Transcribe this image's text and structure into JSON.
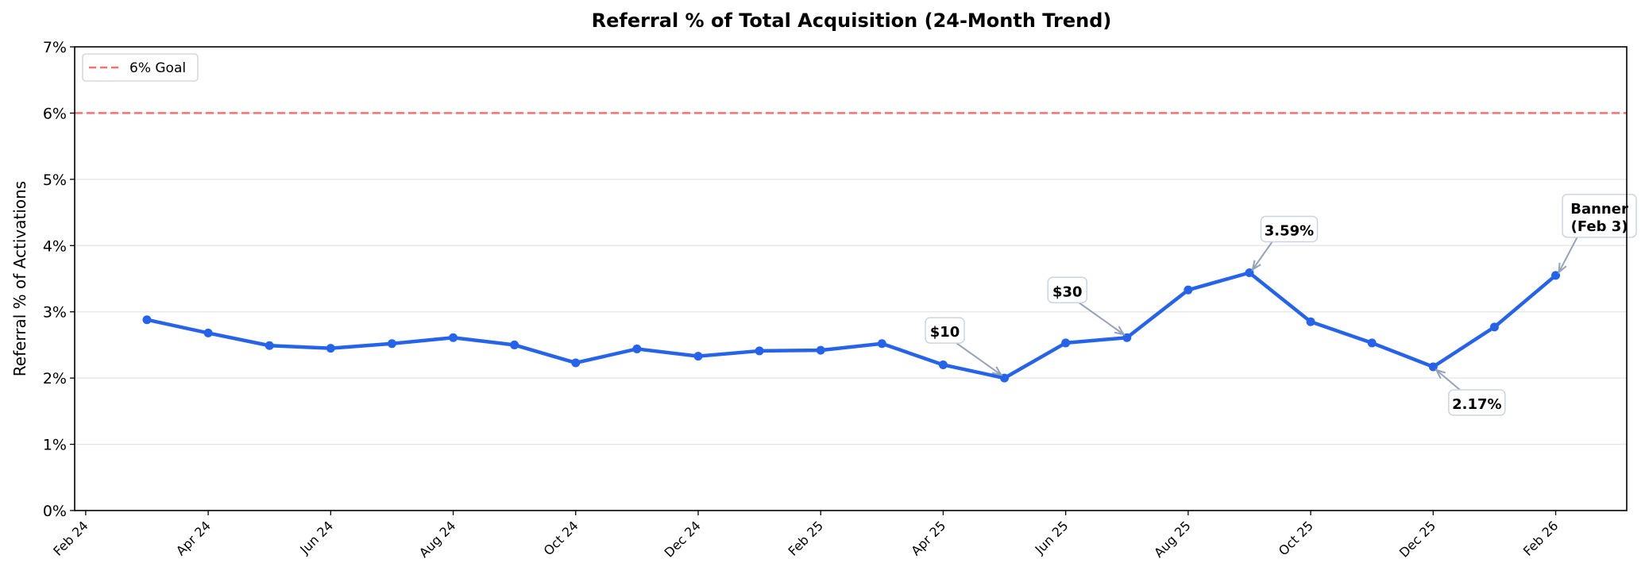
{
  "chart_data": {
    "type": "line",
    "title": "Referral % of Total Acquisition (24-Month Trend)",
    "xlabel": "",
    "ylabel": "Referral % of Activations",
    "ylim": [
      0,
      7
    ],
    "yticks": [
      "0%",
      "1%",
      "2%",
      "3%",
      "4%",
      "5%",
      "6%",
      "7%"
    ],
    "grid": "horizontal",
    "xticks": [
      "Feb 24",
      "Apr 24",
      "Jun 24",
      "Aug 24",
      "Oct 24",
      "Dec 24",
      "Feb 25",
      "Apr 25",
      "Jun 25",
      "Aug 25",
      "Oct 25",
      "Dec 25",
      "Feb 26"
    ],
    "x": [
      "Mar 24",
      "Apr 24",
      "May 24",
      "Jun 24",
      "Jul 24",
      "Aug 24",
      "Sep 24",
      "Oct 24",
      "Nov 24",
      "Dec 24",
      "Jan 25",
      "Feb 25",
      "Mar 25",
      "Apr 25",
      "May 25",
      "Jun 25",
      "Jul 25",
      "Aug 25",
      "Sep 25",
      "Oct 25",
      "Nov 25",
      "Dec 25",
      "Jan 26",
      "Feb 26"
    ],
    "series": [
      {
        "name": "Referral %",
        "color": "#2563eb",
        "values": [
          2.88,
          2.68,
          2.49,
          2.45,
          2.52,
          2.61,
          2.5,
          2.23,
          2.44,
          2.33,
          2.41,
          2.42,
          2.52,
          2.2,
          2.0,
          2.53,
          2.61,
          3.33,
          3.59,
          2.85,
          2.53,
          2.17,
          2.77,
          3.55
        ]
      }
    ],
    "goal": {
      "label": "6% Goal",
      "value": 6,
      "color": "#f87171"
    },
    "legend_position": "top-left",
    "annotations": [
      {
        "text": [
          "$10"
        ],
        "point_index": 14
      },
      {
        "text": [
          "$30"
        ],
        "point_index": 16
      },
      {
        "text": [
          "3.59%"
        ],
        "point_index": 18
      },
      {
        "text": [
          "2.17%"
        ],
        "point_index": 21
      },
      {
        "text": [
          "Banner",
          "(Feb 3)"
        ],
        "point_index": 23
      }
    ]
  }
}
